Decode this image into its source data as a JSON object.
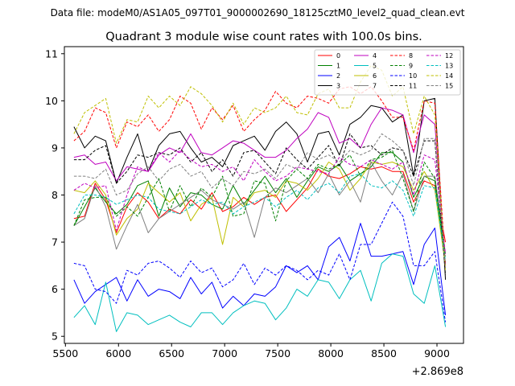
{
  "chart_data": {
    "type": "line",
    "suptitle": "Data file: modeM0/AS1A05_097T01_9000002690_18125cztM0_level2_quad_clean.evt",
    "title": "Quadrant 3 module wise count rates with 100.0s bins.",
    "xlabel": "",
    "ylabel": "",
    "x_offset_label": "+2.869e8",
    "xlim": [
      5490,
      9250
    ],
    "ylim": [
      4.85,
      11.15
    ],
    "xticks": [
      5500,
      6000,
      6500,
      7000,
      7500,
      8000,
      8500,
      9000
    ],
    "yticks": [
      5,
      6,
      7,
      8,
      9,
      10,
      11
    ],
    "legend_position": "top-right",
    "x": [
      5580,
      5680,
      5780,
      5880,
      5980,
      6080,
      6180,
      6280,
      6380,
      6480,
      6580,
      6680,
      6780,
      6880,
      6980,
      7080,
      7180,
      7280,
      7380,
      7480,
      7580,
      7680,
      7780,
      7880,
      7980,
      8080,
      8180,
      8280,
      8380,
      8480,
      8580,
      8680,
      8780,
      8880,
      8980,
      9080
    ],
    "series": [
      {
        "name": "0",
        "color": "#ff0000",
        "dash": false,
        "values": [
          7.5,
          7.55,
          8.25,
          7.9,
          7.2,
          7.75,
          8.05,
          7.85,
          7.5,
          7.7,
          7.6,
          7.9,
          7.7,
          8.05,
          7.65,
          7.75,
          7.95,
          7.8,
          7.95,
          8.0,
          7.65,
          7.9,
          8.15,
          8.55,
          8.4,
          8.35,
          8.45,
          8.6,
          8.55,
          8.6,
          8.5,
          8.5,
          7.85,
          8.3,
          8.2,
          7.0
        ]
      },
      {
        "name": "1",
        "color": "#008000",
        "dash": false,
        "values": [
          7.35,
          7.75,
          8.15,
          7.85,
          7.6,
          7.8,
          8.2,
          8.3,
          7.55,
          8.15,
          7.75,
          8.05,
          8.0,
          7.8,
          7.7,
          8.2,
          7.8,
          8.1,
          8.4,
          8.05,
          8.35,
          7.95,
          8.3,
          8.6,
          8.5,
          8.65,
          8.3,
          8.45,
          8.6,
          8.9,
          8.9,
          8.7,
          7.95,
          8.4,
          8.3,
          6.55
        ]
      },
      {
        "name": "2",
        "color": "#0000ff",
        "dash": false,
        "values": [
          6.2,
          5.7,
          5.95,
          6.1,
          6.25,
          5.75,
          6.2,
          5.85,
          6.0,
          5.95,
          5.8,
          6.25,
          5.9,
          6.15,
          5.6,
          5.85,
          5.65,
          5.9,
          5.85,
          6.05,
          6.5,
          6.35,
          6.5,
          6.2,
          6.9,
          7.1,
          6.6,
          7.4,
          6.7,
          6.7,
          6.75,
          6.8,
          6.1,
          6.95,
          7.3,
          5.45
        ]
      },
      {
        "name": "3",
        "color": "#000000",
        "dash": false,
        "values": [
          9.45,
          9.0,
          9.25,
          9.15,
          8.25,
          8.8,
          9.3,
          8.5,
          9.05,
          9.3,
          9.35,
          9.0,
          8.7,
          8.8,
          8.6,
          9.05,
          9.15,
          9.25,
          8.95,
          9.35,
          9.55,
          9.3,
          8.7,
          9.3,
          9.35,
          8.85,
          9.5,
          9.65,
          9.9,
          9.85,
          9.55,
          9.7,
          8.4,
          10.0,
          10.05,
          6.2
        ]
      },
      {
        "name": "4",
        "color": "#bf00bf",
        "dash": false,
        "values": [
          8.8,
          8.85,
          8.65,
          8.7,
          8.3,
          8.6,
          8.55,
          8.5,
          8.85,
          9.0,
          8.9,
          9.3,
          8.9,
          8.85,
          9.0,
          9.15,
          9.1,
          8.95,
          8.8,
          8.8,
          8.95,
          9.2,
          9.4,
          9.75,
          9.65,
          9.1,
          9.2,
          9.0,
          9.5,
          9.85,
          9.8,
          9.7,
          8.9,
          9.7,
          9.5,
          6.5
        ]
      },
      {
        "name": "5",
        "color": "#00bfbf",
        "dash": false,
        "values": [
          5.4,
          5.65,
          5.25,
          6.15,
          5.1,
          5.5,
          5.45,
          5.25,
          5.35,
          5.45,
          5.3,
          5.2,
          5.5,
          5.5,
          5.25,
          5.5,
          5.65,
          5.75,
          5.7,
          5.35,
          5.6,
          6.0,
          5.85,
          6.2,
          6.15,
          5.8,
          6.2,
          6.4,
          5.75,
          6.55,
          6.75,
          6.7,
          5.9,
          5.7,
          6.5,
          5.2
        ]
      },
      {
        "name": "6",
        "color": "#bfbf00",
        "dash": false,
        "values": [
          8.1,
          8.05,
          8.3,
          8.0,
          7.15,
          7.5,
          7.7,
          8.25,
          8.05,
          7.85,
          8.05,
          7.45,
          7.8,
          7.95,
          6.95,
          7.95,
          7.75,
          8.05,
          8.1,
          7.95,
          8.3,
          8.25,
          8.1,
          8.35,
          8.7,
          8.55,
          8.1,
          8.35,
          8.7,
          8.65,
          8.7,
          8.6,
          8.1,
          8.5,
          8.1,
          6.5
        ]
      },
      {
        "name": "7",
        "color": "#808080",
        "dash": false,
        "values": [
          7.35,
          7.5,
          8.2,
          7.75,
          6.85,
          7.35,
          7.8,
          7.2,
          7.5,
          7.65,
          7.8,
          7.95,
          8.1,
          7.9,
          7.8,
          7.7,
          7.85,
          7.1,
          7.95,
          8.15,
          8.05,
          8.2,
          8.35,
          8.05,
          8.45,
          8.0,
          8.3,
          7.85,
          8.7,
          8.3,
          8.0,
          8.45,
          7.65,
          8.4,
          8.4,
          6.75
        ]
      },
      {
        "name": "8",
        "color": "#ff0000",
        "dash": true,
        "values": [
          9.15,
          9.35,
          9.85,
          9.75,
          9.0,
          9.55,
          9.45,
          9.7,
          9.35,
          9.6,
          10.1,
          9.95,
          9.4,
          9.85,
          9.6,
          9.9,
          9.35,
          9.6,
          9.8,
          10.2,
          9.95,
          9.85,
          10.1,
          10.05,
          9.95,
          10.25,
          10.3,
          10.15,
          10.3,
          10.0,
          9.65,
          9.65,
          8.95,
          10.0,
          9.95,
          6.5
        ]
      },
      {
        "name": "9",
        "color": "#008000",
        "dash": true,
        "values": [
          7.35,
          7.9,
          7.95,
          7.95,
          7.55,
          7.75,
          7.55,
          7.95,
          8.35,
          7.65,
          8.2,
          7.75,
          8.15,
          7.95,
          8.4,
          7.55,
          7.6,
          8.3,
          8.25,
          7.45,
          8.3,
          8.55,
          8.35,
          8.65,
          8.55,
          8.65,
          8.85,
          8.4,
          8.75,
          8.8,
          8.95,
          8.35,
          7.65,
          8.7,
          8.35,
          6.7
        ]
      },
      {
        "name": "10",
        "color": "#0000ff",
        "dash": true,
        "values": [
          6.55,
          6.5,
          6.0,
          5.95,
          5.7,
          6.4,
          6.3,
          6.55,
          6.6,
          6.45,
          6.25,
          6.6,
          6.35,
          6.45,
          6.05,
          6.2,
          6.55,
          6.1,
          6.45,
          6.3,
          6.5,
          6.4,
          6.2,
          6.4,
          6.3,
          6.75,
          6.2,
          6.95,
          6.95,
          7.4,
          7.85,
          7.55,
          6.5,
          6.5,
          6.8,
          5.3
        ]
      },
      {
        "name": "11",
        "color": "#000000",
        "dash": true,
        "values": [
          8.75,
          8.75,
          8.95,
          9.05,
          8.25,
          8.5,
          8.85,
          8.8,
          8.9,
          8.85,
          9.0,
          8.7,
          8.9,
          8.5,
          8.75,
          8.4,
          8.9,
          8.95,
          8.7,
          8.45,
          9.0,
          8.75,
          8.55,
          8.8,
          9.05,
          8.6,
          9.3,
          9.0,
          9.05,
          8.85,
          9.0,
          8.95,
          8.4,
          9.15,
          9.15,
          6.3
        ]
      },
      {
        "name": "12",
        "color": "#bf00bf",
        "dash": true,
        "values": [
          8.1,
          8.25,
          8.15,
          8.2,
          7.25,
          8.0,
          8.6,
          8.5,
          8.9,
          8.7,
          8.95,
          8.75,
          8.6,
          8.65,
          8.5,
          8.6,
          8.3,
          8.75,
          8.5,
          8.3,
          8.4,
          8.6,
          8.55,
          8.5,
          8.45,
          8.8,
          8.65,
          8.6,
          8.75,
          8.65,
          8.55,
          8.7,
          8.0,
          8.85,
          8.75,
          6.75
        ]
      },
      {
        "name": "13",
        "color": "#00bfbf",
        "dash": true,
        "values": [
          7.6,
          8.0,
          8.0,
          7.95,
          7.8,
          7.9,
          8.0,
          7.95,
          7.7,
          7.65,
          7.6,
          7.75,
          7.9,
          7.8,
          7.85,
          7.6,
          7.75,
          7.85,
          7.95,
          7.75,
          7.95,
          8.1,
          7.9,
          8.15,
          8.25,
          8.05,
          8.4,
          8.45,
          8.2,
          8.15,
          8.3,
          8.1,
          7.55,
          8.2,
          8.15,
          6.6
        ]
      },
      {
        "name": "14",
        "color": "#bfbf00",
        "dash": true,
        "values": [
          9.3,
          9.75,
          9.9,
          10.05,
          9.1,
          9.6,
          9.55,
          10.1,
          9.85,
          10.1,
          9.9,
          10.3,
          10.15,
          9.9,
          9.55,
          9.95,
          9.5,
          9.85,
          9.75,
          9.85,
          10.1,
          9.75,
          9.7,
          10.15,
          10.25,
          9.85,
          9.85,
          10.4,
          10.75,
          10.65,
          10.1,
          10.3,
          9.3,
          10.1,
          9.7,
          6.4
        ]
      },
      {
        "name": "15",
        "color": "#808080",
        "dash": true,
        "values": [
          8.4,
          8.4,
          8.35,
          8.55,
          8.0,
          8.1,
          8.45,
          8.6,
          8.3,
          8.55,
          8.65,
          8.4,
          8.5,
          8.15,
          8.35,
          8.2,
          8.5,
          8.45,
          8.55,
          8.35,
          8.65,
          8.55,
          8.9,
          8.75,
          8.85,
          8.7,
          8.95,
          8.85,
          8.95,
          9.3,
          9.15,
          8.95,
          8.2,
          9.2,
          9.2,
          6.45
        ]
      }
    ]
  }
}
